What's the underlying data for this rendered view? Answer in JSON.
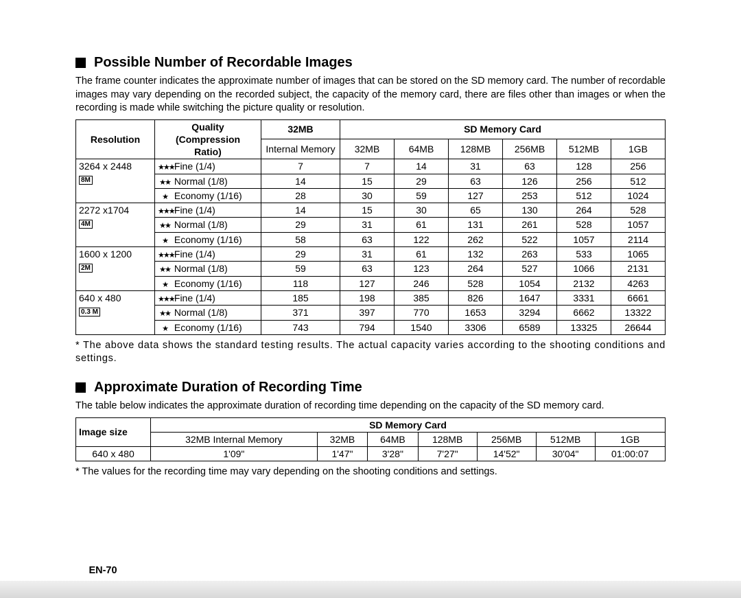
{
  "section1": {
    "heading": "Possible Number of Recordable Images",
    "intro": "The frame counter indicates the approximate number of images that can be stored on the SD memory card. The number of recordable images may vary depending on the recorded subject, the capacity of the memory card, there are files other than images or when the recording is made while switching the picture quality or resolution.",
    "table": {
      "header": {
        "resolution": "Resolution",
        "quality": "Quality (Compression Ratio)",
        "sd_card_title": "SD Memory Card",
        "internal_label": "32MB",
        "internal_sub": "Internal Memory",
        "sd_cols": [
          "32MB",
          "64MB",
          "128MB",
          "256MB",
          "512MB",
          "1GB"
        ]
      },
      "groups": [
        {
          "res": "3264 x 2448",
          "badge": "8M",
          "rows": [
            {
              "stars": 3,
              "label": "Fine (1/4)",
              "vals": [
                "7",
                "7",
                "14",
                "31",
                "63",
                "128",
                "256"
              ]
            },
            {
              "stars": 2,
              "label": "Normal (1/8)",
              "vals": [
                "14",
                "15",
                "29",
                "63",
                "126",
                "256",
                "512"
              ]
            },
            {
              "stars": 1,
              "label": "Economy (1/16)",
              "vals": [
                "28",
                "30",
                "59",
                "127",
                "253",
                "512",
                "1024"
              ]
            }
          ]
        },
        {
          "res": "2272 x1704",
          "badge": "4M",
          "rows": [
            {
              "stars": 3,
              "label": "Fine (1/4)",
              "vals": [
                "14",
                "15",
                "30",
                "65",
                "130",
                "264",
                "528"
              ]
            },
            {
              "stars": 2,
              "label": "Normal (1/8)",
              "vals": [
                "29",
                "31",
                "61",
                "131",
                "261",
                "528",
                "1057"
              ]
            },
            {
              "stars": 1,
              "label": "Economy (1/16)",
              "vals": [
                "58",
                "63",
                "122",
                "262",
                "522",
                "1057",
                "2114"
              ]
            }
          ]
        },
        {
          "res": "1600 x 1200",
          "badge": "2M",
          "rows": [
            {
              "stars": 3,
              "label": "Fine (1/4)",
              "vals": [
                "29",
                "31",
                "61",
                "132",
                "263",
                "533",
                "1065"
              ]
            },
            {
              "stars": 2,
              "label": "Normal (1/8)",
              "vals": [
                "59",
                "63",
                "123",
                "264",
                "527",
                "1066",
                "2131"
              ]
            },
            {
              "stars": 1,
              "label": "Economy (1/16)",
              "vals": [
                "118",
                "127",
                "246",
                "528",
                "1054",
                "2132",
                "4263"
              ]
            }
          ]
        },
        {
          "res": "640 x 480",
          "badge": "0.3 M",
          "rows": [
            {
              "stars": 3,
              "label": "Fine (1/4)",
              "vals": [
                "185",
                "198",
                "385",
                "826",
                "1647",
                "3331",
                "6661"
              ]
            },
            {
              "stars": 2,
              "label": "Normal (1/8)",
              "vals": [
                "371",
                "397",
                "770",
                "1653",
                "3294",
                "6662",
                "13322"
              ]
            },
            {
              "stars": 1,
              "label": "Economy (1/16)",
              "vals": [
                "743",
                "794",
                "1540",
                "3306",
                "6589",
                "13325",
                "26644"
              ]
            }
          ]
        }
      ]
    },
    "footnote": "* The above data shows the standard testing results. The actual capacity varies according to the shooting conditions and settings."
  },
  "section2": {
    "heading": "Approximate Duration of Recording Time",
    "intro": "The table below indicates the approximate duration of recording time depending on the capacity of the SD memory card.",
    "table": {
      "header": {
        "image_size": "Image size",
        "sd_card_title": "SD Memory Card",
        "internal_label": "32MB Internal Memory",
        "sd_cols": [
          "32MB",
          "64MB",
          "128MB",
          "256MB",
          "512MB",
          "1GB"
        ]
      },
      "row": {
        "res": "640 x 480",
        "vals": [
          "1'09\"",
          "1'47\"",
          "3'28\"",
          "7'27\"",
          "14'52\"",
          "30'04\"",
          "01:00:07"
        ]
      }
    },
    "footnote": "* The values for the recording time may vary depending on the shooting conditions and settings."
  },
  "page_number": "EN-70",
  "colors": {
    "text": "#000000",
    "background": "#ffffff",
    "border": "#000000"
  },
  "star_glyphs": {
    "1": "★",
    "2": "★★",
    "3": "★★★"
  }
}
